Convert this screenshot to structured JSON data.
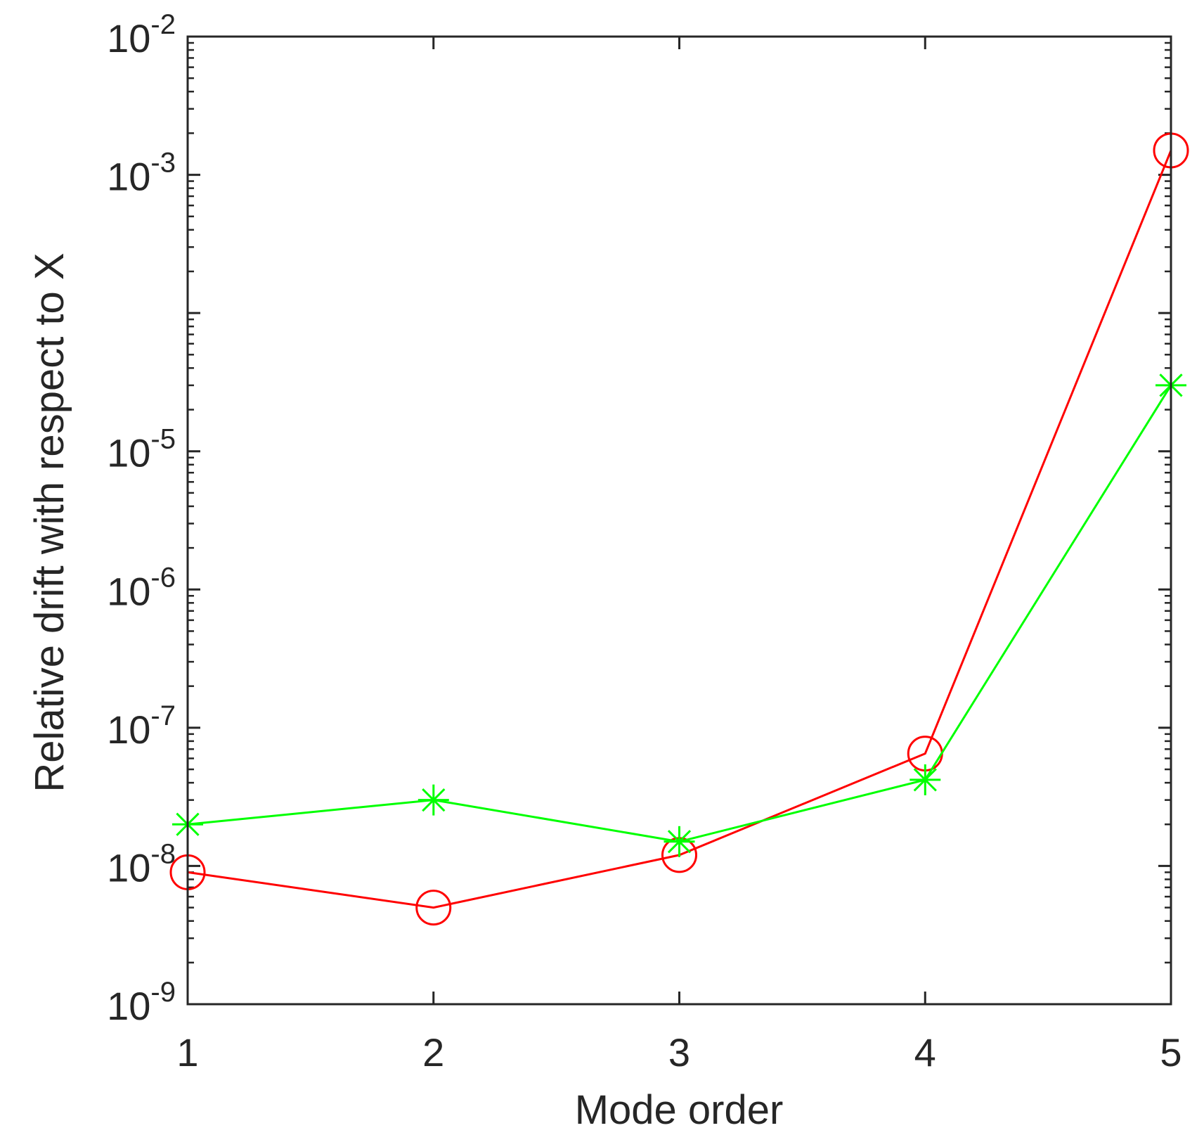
{
  "chart_data": {
    "type": "line",
    "title": "",
    "xlabel": "Mode order",
    "ylabel": "Relative drift with respect to X",
    "xlim": [
      1,
      5
    ],
    "ylim": [
      1e-09,
      0.01
    ],
    "yscale": "log",
    "grid": false,
    "legend": "none",
    "xticks": [
      1,
      2,
      3,
      4,
      5
    ],
    "xtick_labels": [
      "1",
      "2",
      "3",
      "4",
      "5"
    ],
    "ytick_labels": [
      {
        "value": 1e-09,
        "base": "10",
        "exp": "-9"
      },
      {
        "value": 1e-08,
        "base": "10",
        "exp": "-8"
      },
      {
        "value": 1e-07,
        "base": "10",
        "exp": "-7"
      },
      {
        "value": 1e-06,
        "base": "10",
        "exp": "-6"
      },
      {
        "value": 1e-05,
        "base": "10",
        "exp": "-5"
      },
      {
        "value": 0.001,
        "base": "10",
        "exp": "-3"
      },
      {
        "value": 0.01,
        "base": "10",
        "exp": "-2"
      }
    ],
    "series": [
      {
        "marker": "circle",
        "color": "#ff0000",
        "x": [
          1,
          2,
          3,
          4,
          5
        ],
        "values": [
          9e-09,
          5e-09,
          1.2e-08,
          6.5e-08,
          0.0015
        ]
      },
      {
        "marker": "asterisk",
        "color": "#00ff00",
        "x": [
          1,
          2,
          3,
          4,
          5
        ],
        "values": [
          2e-08,
          3e-08,
          1.5e-08,
          4.2e-08,
          3e-05
        ]
      }
    ],
    "axis_color": "#262626"
  }
}
